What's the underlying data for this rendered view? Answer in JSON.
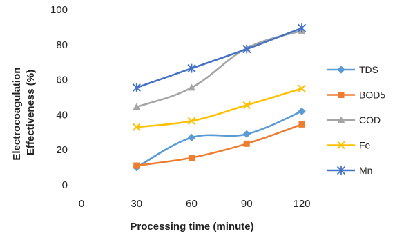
{
  "chart_data": {
    "type": "line",
    "title": "",
    "xlabel": "Processing time (minute)",
    "ylabel_lines": [
      "Electrocoagulation",
      "Effectiveness (%)"
    ],
    "x": [
      30,
      60,
      90,
      120
    ],
    "xticks": [
      0,
      30,
      60,
      90,
      120
    ],
    "xlim": [
      0,
      120
    ],
    "yticks": [
      0,
      20,
      40,
      60,
      80,
      100
    ],
    "ylim": [
      0,
      100
    ],
    "grid": false,
    "smooth": true,
    "legend_position": "right",
    "series": [
      {
        "name": "TDS",
        "values": [
          10,
          27,
          29,
          42
        ],
        "color": "#5b9bd5",
        "marker": "diamond"
      },
      {
        "name": "BOD5",
        "values": [
          11,
          15.5,
          23.5,
          34.5
        ],
        "color": "#ed7d31",
        "marker": "square"
      },
      {
        "name": "COD",
        "values": [
          44.5,
          55.5,
          78,
          88
        ],
        "color": "#a5a5a5",
        "marker": "triangle"
      },
      {
        "name": "Fe",
        "values": [
          33,
          36.5,
          45.5,
          55
        ],
        "color": "#ffc000",
        "marker": "x"
      },
      {
        "name": "Mn",
        "values": [
          55.5,
          66.5,
          77.5,
          89.5
        ],
        "color": "#4472c4",
        "marker": "asterisk"
      }
    ]
  }
}
